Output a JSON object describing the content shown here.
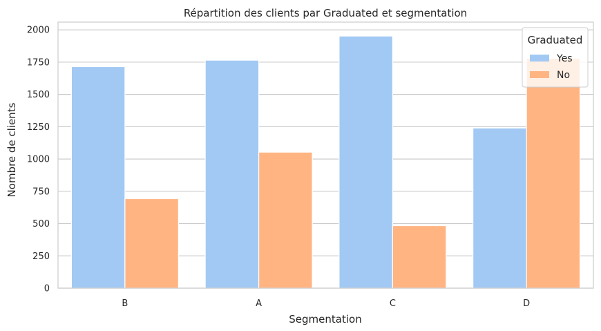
{
  "chart_data": {
    "type": "bar",
    "title": "Répartition des clients par Graduated et segmentation",
    "xlabel": "Segmentation",
    "ylabel": "Nombre de clients",
    "categories": [
      "B",
      "A",
      "C",
      "D"
    ],
    "series": [
      {
        "name": "Yes",
        "color": "#a1c9f4",
        "values": [
          1715,
          1765,
          1952,
          1240
        ]
      },
      {
        "name": "No",
        "color": "#ffb482",
        "values": [
          693,
          1053,
          484,
          1780
        ]
      }
    ],
    "ylim": [
      0,
      2060
    ],
    "yticks": [
      0,
      250,
      500,
      750,
      1000,
      1250,
      1500,
      1750,
      2000
    ],
    "grid": "horizontal",
    "legend": {
      "title": "Graduated",
      "position": "top-right"
    }
  }
}
